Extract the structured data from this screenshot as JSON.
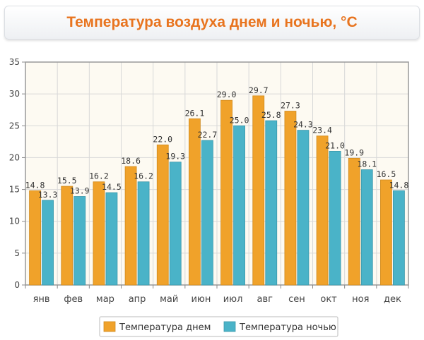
{
  "title": "Температура воздуха днем и ночью, °C",
  "colors": {
    "day": "#f0a22a",
    "night": "#4ab3c8",
    "day_stroke": "#d08a1e",
    "night_stroke": "#3a98ab",
    "plot_bg": "#fdfaf2",
    "grid": "#d8d8d8",
    "axis": "#888888"
  },
  "chart_data": {
    "type": "bar",
    "title": "Температура воздуха днем и ночью, °C",
    "categories": [
      "янв",
      "фев",
      "мар",
      "апр",
      "май",
      "июн",
      "июл",
      "авг",
      "сен",
      "окт",
      "ноя",
      "дек"
    ],
    "series": [
      {
        "name": "Температура днем",
        "values": [
          14.8,
          15.5,
          16.2,
          18.6,
          22.0,
          26.1,
          29.0,
          29.7,
          27.3,
          23.4,
          19.9,
          16.5
        ]
      },
      {
        "name": "Температура ночью",
        "values": [
          13.3,
          13.9,
          14.5,
          16.2,
          19.3,
          22.7,
          25.0,
          25.8,
          24.3,
          21.0,
          18.1,
          14.8
        ]
      }
    ],
    "ylim": [
      0,
      35
    ],
    "yticks": [
      0,
      5,
      10,
      15,
      20,
      25,
      30,
      35
    ],
    "grid": true,
    "legend_position": "bottom"
  }
}
